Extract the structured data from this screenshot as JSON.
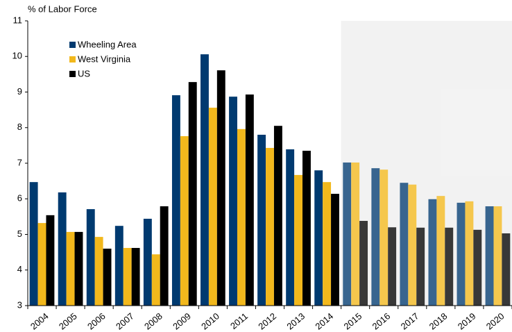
{
  "chart_data": {
    "type": "bar",
    "y_axis_label": "% of Labor Force",
    "categories": [
      "2004",
      "2005",
      "2006",
      "2007",
      "2008",
      "2009",
      "2010",
      "2011",
      "2012",
      "2013",
      "2014",
      "2015",
      "2016",
      "2017",
      "2018",
      "2019",
      "2020"
    ],
    "series": [
      {
        "name": "Wheeling Area",
        "color": "#003a70",
        "values": [
          6.47,
          6.18,
          5.71,
          5.24,
          5.44,
          8.91,
          10.06,
          8.87,
          7.8,
          7.39,
          6.8,
          7.02,
          6.86,
          6.45,
          5.99,
          5.89,
          5.79
        ]
      },
      {
        "name": "West Virginia",
        "color": "#f2b81c",
        "values": [
          5.32,
          5.07,
          4.93,
          4.62,
          4.44,
          7.76,
          8.56,
          7.96,
          7.43,
          6.67,
          6.47,
          7.02,
          6.82,
          6.4,
          6.08,
          5.93,
          5.79
        ]
      },
      {
        "name": "US",
        "color": "#000000",
        "values": [
          5.54,
          5.07,
          4.6,
          4.62,
          5.79,
          9.28,
          9.61,
          8.93,
          8.05,
          7.35,
          6.14,
          5.38,
          5.2,
          5.19,
          5.19,
          5.13,
          5.03
        ]
      }
    ],
    "shade_from": "2015",
    "ylim": [
      3,
      11
    ],
    "yticks": [
      3,
      4,
      5,
      6,
      7,
      8,
      9,
      10,
      11
    ],
    "legend": "upper left"
  }
}
